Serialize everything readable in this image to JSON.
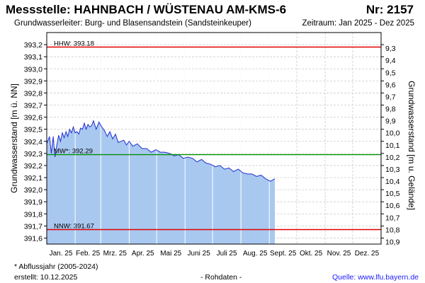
{
  "header": {
    "title": "Messstelle: HAHNBACH / WÜSTENAU  AM-KMS-6",
    "number": "Nr: 2157",
    "aquifer": "Grundwasserleiter:  Burg- und Blasensandstein (Sandsteinkeuper)",
    "period": "Zeitraum: Jan 2025 - Dez 2025"
  },
  "footer": {
    "note": "* Abflussjahr (2005-2024)",
    "created": "erstellt:  10.12.2025",
    "raw": "- Rohdaten -",
    "source_label": "Quelle: ",
    "source_link": "www.lfu.bayern.de"
  },
  "colors": {
    "fill": "#a9c8f0",
    "line": "#1f2fd0",
    "hhw": "#e00000",
    "mw": "#009000",
    "nnw": "#e00000",
    "grid": "#cccccc",
    "month_line": "#ffffff"
  },
  "chart_data": {
    "type": "area",
    "ylabel": "Grundwasserstand [m ü. NN]",
    "ylabel_right": "Grundwasserstand [m u. Gelände]",
    "ylim": [
      391.55,
      393.3
    ],
    "yticks": [
      "393,2",
      "393,1",
      "393,0",
      "392,9",
      "392,8",
      "392,7",
      "392,6",
      "392,5",
      "392,4",
      "392,3",
      "392,2",
      "392,1",
      "392,0",
      "391,9",
      "391,8",
      "391,7",
      "391,6"
    ],
    "yticks_right": [
      "9,3",
      "9,4",
      "9,5",
      "9,6",
      "9,7",
      "9,8",
      "9,9",
      "10,0",
      "10,1",
      "10,2",
      "10,3",
      "10,4",
      "10,5",
      "10,6",
      "10,7",
      "10,8",
      "10,9"
    ],
    "categories": [
      "Jan. 25",
      "Feb. 25",
      "Mrz. 25",
      "Apr. 25",
      "Mai 25",
      "Juni 25",
      "Juli 25",
      "Aug. 25",
      "Sept. 25",
      "Okt. 25",
      "Nov. 25",
      "Dez. 25"
    ],
    "x_unit": "day of 2025",
    "x": [
      1,
      4,
      6,
      8,
      10,
      12,
      14,
      16,
      18,
      20,
      22,
      24,
      26,
      28,
      30,
      32,
      34,
      36,
      38,
      40,
      42,
      44,
      46,
      48,
      50,
      52,
      55,
      58,
      61,
      64,
      67,
      70,
      73,
      76,
      79,
      82,
      85,
      88,
      91,
      95,
      100,
      105,
      110,
      115,
      120,
      125,
      130,
      135,
      140,
      145,
      150,
      155,
      160,
      165,
      170,
      175,
      180,
      185,
      190,
      195,
      200,
      205,
      210,
      215,
      220,
      225,
      230,
      235,
      240,
      245,
      250
    ],
    "values": [
      392.38,
      392.44,
      392.3,
      392.44,
      392.27,
      392.37,
      392.45,
      392.4,
      392.47,
      392.43,
      392.48,
      392.44,
      392.5,
      392.47,
      392.52,
      392.47,
      392.48,
      392.46,
      392.51,
      392.5,
      392.55,
      392.5,
      392.54,
      392.52,
      392.53,
      392.57,
      392.5,
      392.56,
      392.52,
      392.49,
      392.44,
      392.48,
      392.42,
      392.46,
      392.39,
      392.4,
      392.41,
      392.37,
      392.4,
      392.36,
      392.38,
      392.34,
      392.34,
      392.31,
      392.33,
      392.31,
      392.31,
      392.3,
      392.28,
      392.29,
      392.26,
      392.27,
      392.26,
      392.23,
      392.25,
      392.22,
      392.21,
      392.19,
      392.2,
      392.17,
      392.18,
      392.15,
      392.17,
      392.14,
      392.13,
      392.13,
      392.11,
      392.12,
      392.09,
      392.07,
      392.09
    ],
    "reference_lines": [
      {
        "label": "HHW: 393.18",
        "value": 393.18,
        "color": "#e00000"
      },
      {
        "label": "MW*: 392.29",
        "value": 392.29,
        "color": "#009000"
      },
      {
        "label": "NNW: 391.67",
        "value": 391.67,
        "color": "#e00000"
      }
    ],
    "grid": true
  }
}
